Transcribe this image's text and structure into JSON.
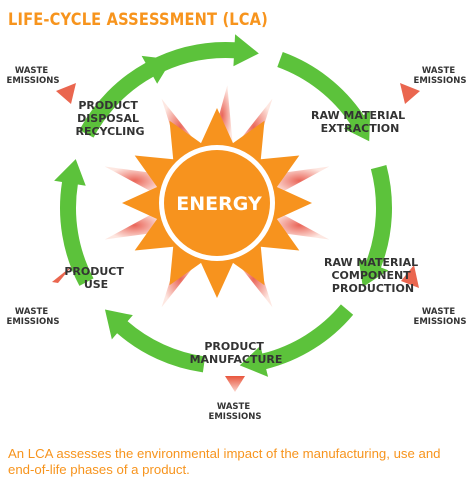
{
  "title": "LIFE-CYCLE ASSESSMENT (LCA)",
  "center": {
    "label": "ENERGY"
  },
  "stages": [
    {
      "id": "raw-material-extraction",
      "lines": [
        "RAW MATERIAL",
        "EXTRACTION"
      ]
    },
    {
      "id": "raw-material-component-production",
      "lines": [
        "RAW MATERIAL",
        "COMPONENT",
        "PRODUCTION"
      ]
    },
    {
      "id": "product-manufacture",
      "lines": [
        "PRODUCT",
        "MANUFACTURE"
      ]
    },
    {
      "id": "product-use",
      "lines": [
        "PRODUCT",
        "USE"
      ]
    },
    {
      "id": "product-disposal-recycling",
      "lines": [
        "PRODUCT",
        "DISPOSAL",
        "RECYCLING"
      ]
    }
  ],
  "waste": [
    {
      "id": "waste-top-left",
      "lines": [
        "WASTE",
        "EMISSIONS"
      ]
    },
    {
      "id": "waste-top-right",
      "lines": [
        "WASTE",
        "EMISSIONS"
      ]
    },
    {
      "id": "waste-bottom-right",
      "lines": [
        "WASTE",
        "EMISSIONS"
      ]
    },
    {
      "id": "waste-bottom",
      "lines": [
        "WASTE",
        "EMISSIONS"
      ]
    },
    {
      "id": "waste-bottom-left",
      "lines": [
        "WASTE",
        "EMISSIONS"
      ]
    }
  ],
  "caption": "An LCA assesses the environmental impact of the manufacturing, use and end-of-life phases of a product.",
  "colors": {
    "accent": "#f7941d",
    "sun": "#f7931e",
    "cycle_arrow": "#5cc23b",
    "waste_arrow": "#e8553c",
    "text": "#333333"
  }
}
